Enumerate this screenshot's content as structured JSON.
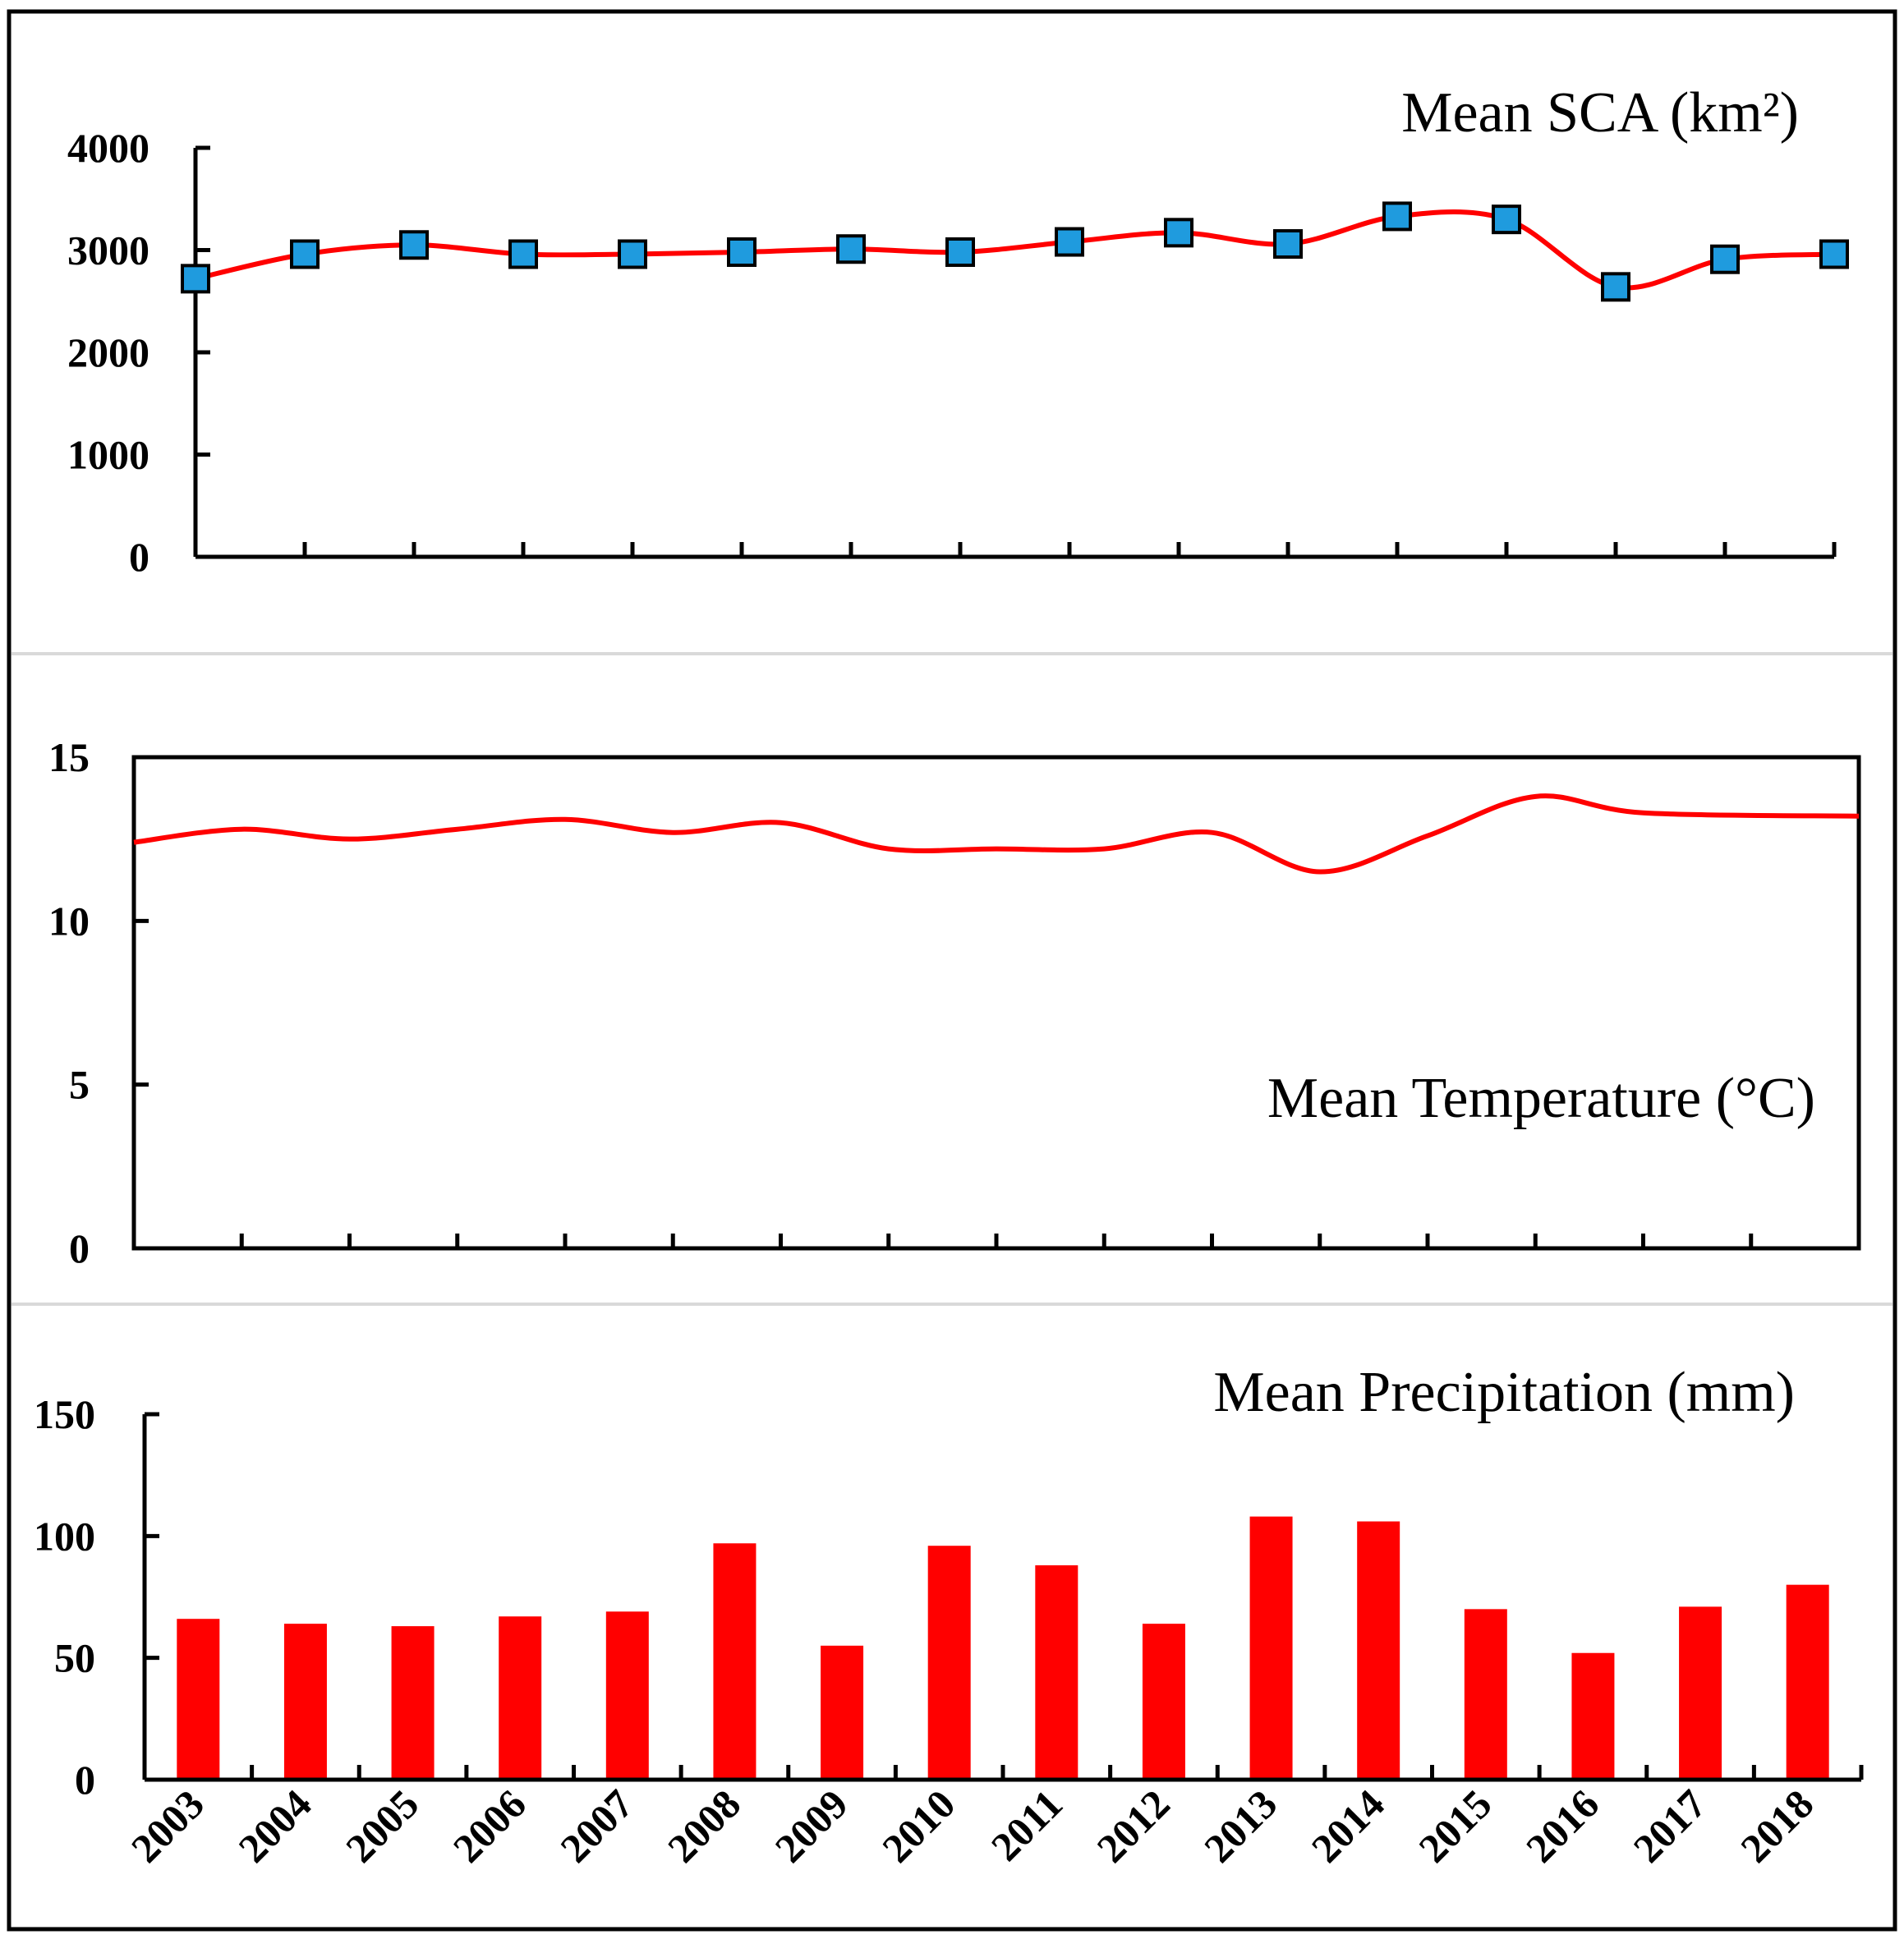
{
  "chart_data": [
    {
      "type": "line",
      "title": "Mean SCA (km²)",
      "marker": "square",
      "x": [
        "2003",
        "2004",
        "2005",
        "2006",
        "2007",
        "2008",
        "2009",
        "2010",
        "2011",
        "2012",
        "2013",
        "2014",
        "2015",
        "2016",
        "2017",
        "2018"
      ],
      "values": [
        2720,
        2960,
        3050,
        2960,
        2960,
        2980,
        3010,
        2980,
        3080,
        3170,
        3060,
        3330,
        3300,
        2640,
        2910,
        2960
      ],
      "ylim": [
        0,
        4000
      ],
      "yticks": [
        "0",
        "1000",
        "2000",
        "3000",
        "4000"
      ],
      "line_color": "#ff0000",
      "marker_color": "#1f9bde"
    },
    {
      "type": "line",
      "title": "Mean Temperature  (°C)",
      "x": [
        "2003",
        "2004",
        "2005",
        "2006",
        "2007",
        "2008",
        "2009",
        "2010",
        "2011",
        "2012",
        "2013",
        "2014",
        "2015",
        "2016",
        "2017",
        "2018"
      ],
      "values": [
        12.4,
        12.8,
        12.5,
        12.8,
        13.1,
        12.7,
        13.0,
        12.2,
        12.2,
        12.2,
        12.7,
        11.5,
        12.6,
        13.8,
        13.3,
        13.2
      ],
      "ylim": [
        0,
        15
      ],
      "yticks": [
        "0",
        "5",
        "10",
        "15"
      ],
      "line_color": "#ff0000"
    },
    {
      "type": "bar",
      "title": "Mean Precipitation (mm)",
      "categories": [
        "2003",
        "2004",
        "2005",
        "2006",
        "2007",
        "2008",
        "2009",
        "2010",
        "2011",
        "2012",
        "2013",
        "2014",
        "2015",
        "2016",
        "2017",
        "2018"
      ],
      "values": [
        66,
        64,
        63,
        67,
        69,
        97,
        55,
        96,
        88,
        64,
        108,
        106,
        70,
        52,
        71,
        80
      ],
      "ylim": [
        0,
        150
      ],
      "yticks": [
        "0",
        "50",
        "100",
        "150"
      ],
      "bar_color": "#ff0000"
    }
  ]
}
